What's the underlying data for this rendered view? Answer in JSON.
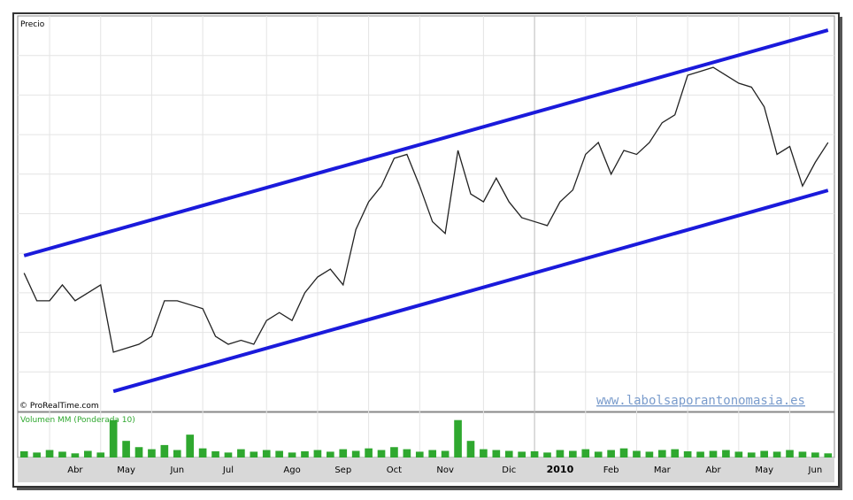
{
  "chart_data": {
    "type": "line",
    "title": "Precio",
    "credit": "© ProRealTime.com",
    "watermark": "www.labolsaporantonomasia.es",
    "categories": [
      null,
      null,
      null,
      null,
      "Abr",
      null,
      null,
      null,
      "May",
      null,
      null,
      null,
      "Jun",
      null,
      null,
      null,
      "Jul",
      null,
      null,
      null,
      null,
      "Ago",
      null,
      null,
      null,
      "Sep",
      null,
      null,
      null,
      "Oct",
      null,
      null,
      null,
      "Nov",
      null,
      null,
      null,
      null,
      "Dic",
      null,
      null,
      null,
      "2010",
      null,
      null,
      null,
      "Feb",
      null,
      null,
      null,
      "Mar",
      null,
      null,
      null,
      "Abr",
      null,
      null,
      null,
      "May",
      null,
      null,
      null,
      "Jun",
      null
    ],
    "ylim": [
      0,
      100
    ],
    "series": [
      {
        "color": "#222222",
        "values": [
          35,
          28,
          28,
          32,
          28,
          30,
          32,
          15,
          16,
          17,
          19,
          28,
          28,
          27,
          26,
          19,
          17,
          18,
          17,
          23,
          25,
          23,
          30,
          34,
          36,
          32,
          46,
          53,
          57,
          64,
          65,
          57,
          48,
          45,
          66,
          55,
          53,
          59,
          53,
          49,
          48,
          47,
          53,
          56,
          65,
          68,
          60,
          66,
          65,
          68,
          73,
          75,
          85,
          86,
          87,
          85,
          83,
          82,
          77,
          65,
          67,
          57,
          63,
          68
        ]
      }
    ],
    "channel_color": "#1a1adb",
    "channels": [
      {
        "start": [
          0,
          39.4
        ],
        "end": [
          63,
          96.4
        ]
      },
      {
        "start": [
          7,
          5.1
        ],
        "end": [
          63,
          55.9
        ]
      }
    ],
    "volume": {
      "title": "Volumen MM (Ponderada 10)",
      "color": "#2fa82f",
      "ylim": [
        0,
        100
      ],
      "values": [
        15,
        12,
        18,
        14,
        10,
        16,
        12,
        90,
        40,
        25,
        20,
        30,
        18,
        55,
        22,
        15,
        12,
        20,
        14,
        18,
        16,
        12,
        15,
        18,
        14,
        20,
        16,
        22,
        18,
        25,
        20,
        14,
        18,
        16,
        90,
        40,
        20,
        18,
        16,
        14,
        15,
        12,
        18,
        16,
        20,
        14,
        18,
        22,
        16,
        14,
        18,
        20,
        15,
        14,
        16,
        18,
        14,
        12,
        16,
        14,
        18,
        14,
        12,
        10
      ]
    }
  }
}
